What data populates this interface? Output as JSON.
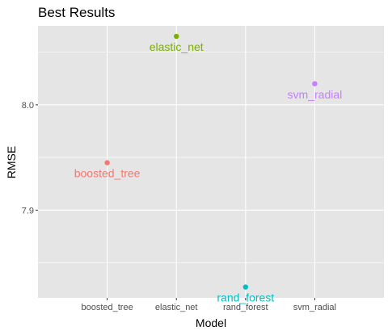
{
  "chart_data": {
    "type": "scatter",
    "title": "Best Results",
    "xlabel": "Model",
    "ylabel": "RMSE",
    "categories": [
      "boosted_tree",
      "elastic_net",
      "rand_forest",
      "svm_radial"
    ],
    "values": [
      7.945,
      8.065,
      7.827,
      8.02
    ],
    "point_labels": [
      "boosted_tree",
      "elastic_net",
      "rand_forest",
      "svm_radial"
    ],
    "yticks": [
      "7.9",
      "8.0"
    ],
    "ytick_values": [
      7.9,
      8.0
    ],
    "ylim": [
      7.8167,
      8.075
    ],
    "grid": true,
    "legend": "none",
    "colors": [
      "#F8766D",
      "#7CAE00",
      "#00BFC4",
      "#C77CFF"
    ],
    "panel_background": "#E5E5E5",
    "grid_color": "#FFFFFF"
  }
}
